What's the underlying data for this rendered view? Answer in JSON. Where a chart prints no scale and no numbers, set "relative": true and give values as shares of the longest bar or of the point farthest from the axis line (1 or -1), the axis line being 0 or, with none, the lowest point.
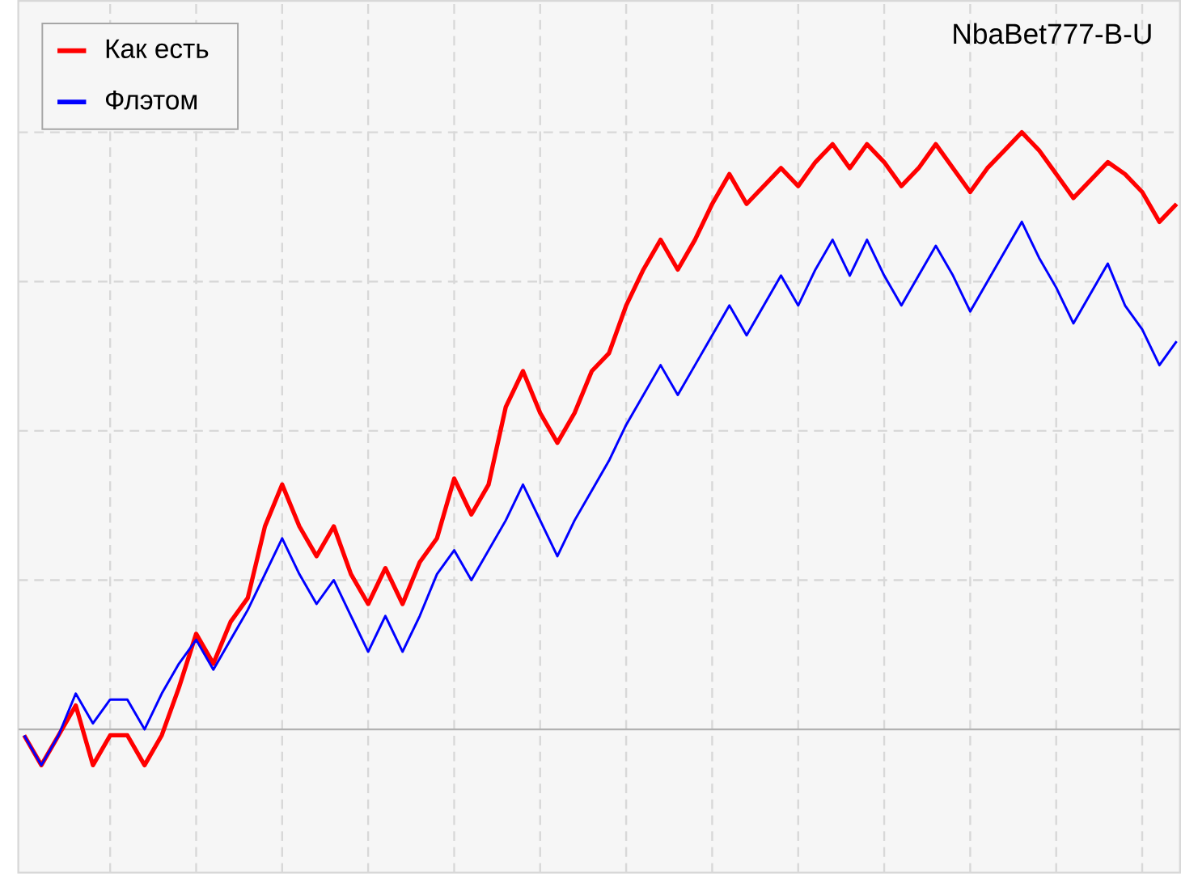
{
  "chart_data": {
    "type": "line",
    "title": "NbaBet777-B-U",
    "relative": true,
    "grid": true,
    "legend": "top left",
    "line_style": "solid",
    "marker": "none",
    "categories": [
      null,
      null,
      null,
      null,
      null,
      null,
      null,
      null,
      null,
      null,
      null,
      null,
      null,
      null,
      null,
      null,
      null,
      null,
      null,
      null,
      null,
      null,
      null,
      null,
      null,
      null,
      null,
      null,
      null,
      null,
      null,
      null,
      null,
      null,
      null,
      null,
      null,
      null,
      null,
      null,
      null,
      null,
      null,
      null,
      null,
      null,
      null,
      null,
      null,
      null,
      null,
      null,
      null,
      null,
      null,
      null,
      null,
      null,
      null,
      null,
      null,
      null,
      null,
      null,
      null,
      null,
      null,
      null
    ],
    "series": [
      {
        "name": "Как  есть",
        "color": "#ff0000",
        "values": [
          -0.01,
          -0.06,
          -0.01,
          0.04,
          -0.06,
          -0.01,
          -0.01,
          -0.06,
          -0.01,
          0.07,
          0.16,
          0.11,
          0.18,
          0.22,
          0.34,
          0.41,
          0.34,
          0.29,
          0.34,
          0.26,
          0.21,
          0.27,
          0.21,
          0.28,
          0.32,
          0.42,
          0.36,
          0.41,
          0.54,
          0.6,
          0.53,
          0.48,
          0.53,
          0.6,
          0.63,
          0.71,
          0.77,
          0.82,
          0.77,
          0.82,
          0.88,
          0.93,
          0.88,
          0.91,
          0.94,
          0.91,
          0.95,
          0.98,
          0.94,
          0.98,
          0.95,
          0.91,
          0.94,
          0.98,
          0.94,
          0.9,
          0.94,
          0.97,
          1,
          0.97,
          0.93,
          0.89,
          0.92,
          0.95,
          0.93,
          0.9,
          0.85,
          0.88
        ]
      },
      {
        "name": "Флэтом",
        "color": "#0000ff",
        "values": [
          -0.01,
          -0.06,
          -0.01,
          0.06,
          0.01,
          0.05,
          0.05,
          0,
          0.06,
          0.11,
          0.15,
          0.1,
          0.15,
          0.2,
          0.26,
          0.32,
          0.26,
          0.21,
          0.25,
          0.19,
          0.13,
          0.19,
          0.13,
          0.19,
          0.26,
          0.3,
          0.25,
          0.3,
          0.35,
          0.41,
          0.35,
          0.29,
          0.35,
          0.4,
          0.45,
          0.51,
          0.56,
          0.61,
          0.56,
          0.61,
          0.66,
          0.71,
          0.66,
          0.71,
          0.76,
          0.71,
          0.77,
          0.82,
          0.76,
          0.82,
          0.76,
          0.71,
          0.76,
          0.81,
          0.76,
          0.7,
          0.75,
          0.8,
          0.85,
          0.79,
          0.74,
          0.68,
          0.73,
          0.78,
          0.71,
          0.67,
          0.61,
          0.65
        ]
      }
    ]
  }
}
